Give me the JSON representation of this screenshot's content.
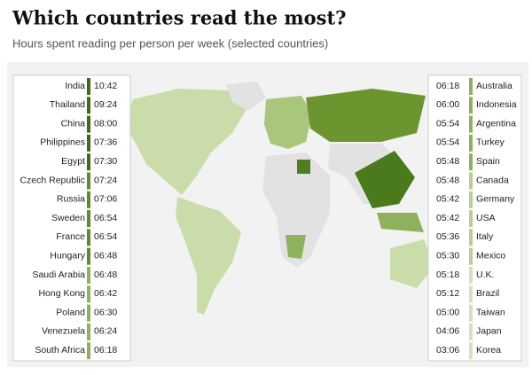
{
  "header": {
    "title": "Which countries read the most?",
    "subtitle": "Hours spent reading per person per week (selected countries)"
  },
  "left_list": [
    {
      "country": "India",
      "time": "10:42"
    },
    {
      "country": "Thailand",
      "time": "09:24"
    },
    {
      "country": "China",
      "time": "08:00"
    },
    {
      "country": "Philippines",
      "time": "07:36"
    },
    {
      "country": "Egypt",
      "time": "07:30"
    },
    {
      "country": "Czech Republic",
      "time": "07:24"
    },
    {
      "country": "Russia",
      "time": "07:06"
    },
    {
      "country": "Sweden",
      "time": "06:54"
    },
    {
      "country": "France",
      "time": "06:54"
    },
    {
      "country": "Hungary",
      "time": "06:48"
    },
    {
      "country": "Saudi Arabia",
      "time": "06:48"
    },
    {
      "country": "Hong Kong",
      "time": "06:42"
    },
    {
      "country": "Poland",
      "time": "06:30"
    },
    {
      "country": "Venezuela",
      "time": "06:24"
    },
    {
      "country": "South Africa",
      "time": "06:18"
    }
  ],
  "right_list": [
    {
      "country": "Australia",
      "time": "06:18"
    },
    {
      "country": "Indonesia",
      "time": "06:00"
    },
    {
      "country": "Argentina",
      "time": "05:54"
    },
    {
      "country": "Turkey",
      "time": "05:54"
    },
    {
      "country": "Spain",
      "time": "05:48"
    },
    {
      "country": "Canada",
      "time": "05:48"
    },
    {
      "country": "Germany",
      "time": "05:42"
    },
    {
      "country": "USA",
      "time": "05:42"
    },
    {
      "country": "Italy",
      "time": "05:36"
    },
    {
      "country": "Mexico",
      "time": "05:30"
    },
    {
      "country": "U.K.",
      "time": "05:18"
    },
    {
      "country": "Brazil",
      "time": "05:12"
    },
    {
      "country": "Taiwan",
      "time": "05:00"
    },
    {
      "country": "Japan",
      "time": "04:06"
    },
    {
      "country": "Korea",
      "time": "03:06"
    }
  ]
}
